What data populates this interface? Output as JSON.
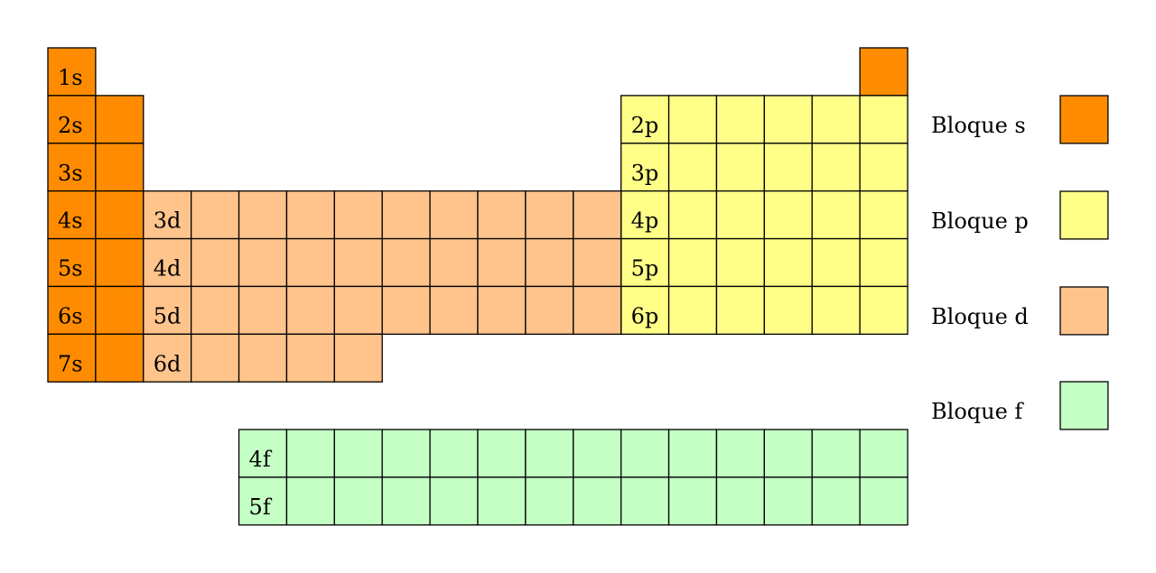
{
  "blocks": {
    "s": {
      "color": "#FF8C00",
      "labels": [
        "1s",
        "2s",
        "3s",
        "4s",
        "5s",
        "6s",
        "7s"
      ]
    },
    "p": {
      "color": "#FFFF88",
      "labels": [
        "2p",
        "3p",
        "4p",
        "5p",
        "6p"
      ]
    },
    "d": {
      "color": "#FFC48C",
      "labels": [
        "3d",
        "4d",
        "5d",
        "6d"
      ]
    },
    "f": {
      "color": "#C4FFC4",
      "labels": [
        "4f",
        "5f"
      ]
    }
  },
  "legend": [
    {
      "label": "Bloque s",
      "color": "#FF8C00"
    },
    {
      "label": "Bloque p",
      "color": "#FFFF88"
    },
    {
      "label": "Bloque d",
      "color": "#FFC48C"
    },
    {
      "label": "Bloque f",
      "color": "#C4FFC4"
    }
  ]
}
